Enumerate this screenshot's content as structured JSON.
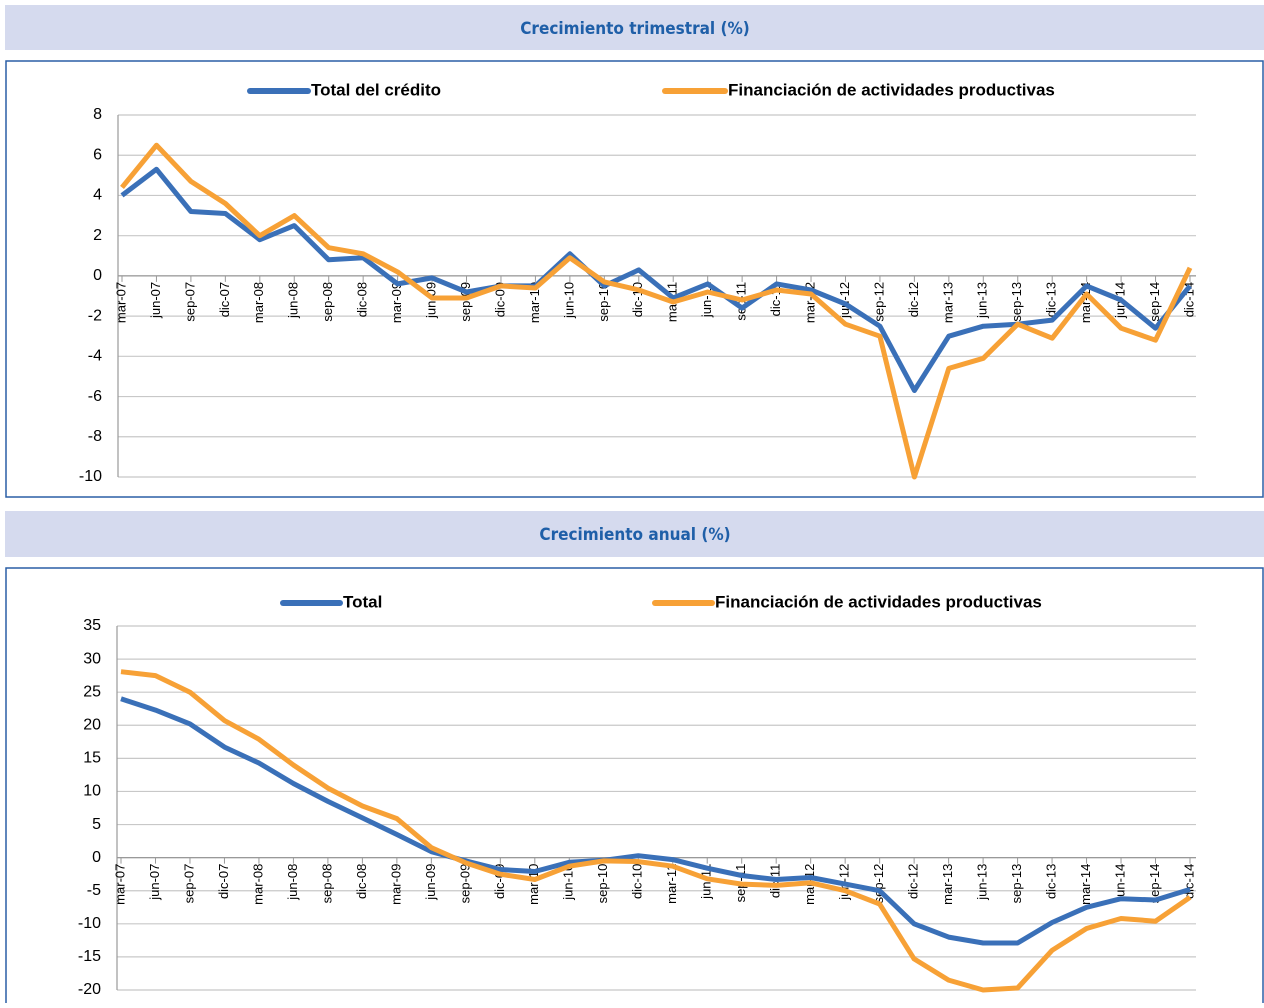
{
  "chart_data": [
    {
      "type": "line",
      "title": "Crecimiento trimestral (%)",
      "categories": [
        "mar-07",
        "jun-07",
        "sep-07",
        "dic-07",
        "mar-08",
        "jun-08",
        "sep-08",
        "dic-08",
        "mar-09",
        "jun-09",
        "sep-09",
        "dic-09",
        "mar-10",
        "jun-10",
        "sep-10",
        "dic-10",
        "mar-11",
        "jun-11",
        "sep-11",
        "dic-11",
        "mar-12",
        "jun-12",
        "sep-12",
        "dic-12",
        "mar-13",
        "jun-13",
        "sep-13",
        "dic-13",
        "mar-14",
        "jun-14",
        "sep-14",
        "dic-14"
      ],
      "series": [
        {
          "name": "Total del crédito",
          "color": "#3a70b8",
          "values": [
            4.0,
            5.3,
            3.2,
            3.1,
            1.8,
            2.5,
            0.8,
            0.9,
            -0.4,
            -0.1,
            -0.8,
            -0.5,
            -0.5,
            1.1,
            -0.5,
            0.3,
            -1.1,
            -0.4,
            -1.6,
            -0.4,
            -0.7,
            -1.4,
            -2.5,
            -5.7,
            -3.0,
            -2.5,
            -2.4,
            -2.2,
            -0.5,
            -1.2,
            -2.6,
            -0.5
          ]
        },
        {
          "name": "Financiación de actividades productivas",
          "color": "#f7a136",
          "values": [
            4.4,
            6.5,
            4.7,
            3.6,
            2.0,
            3.0,
            1.4,
            1.1,
            0.2,
            -1.1,
            -1.1,
            -0.5,
            -0.6,
            0.9,
            -0.3,
            -0.7,
            -1.3,
            -0.8,
            -1.2,
            -0.7,
            -0.9,
            -2.4,
            -3.0,
            -10.0,
            -4.6,
            -4.1,
            -2.4,
            -3.1,
            -0.9,
            -2.6,
            -3.2,
            0.4
          ]
        }
      ],
      "ylim": [
        -10,
        8
      ],
      "yticks": [
        -10,
        -8,
        -6,
        -4,
        -2,
        0,
        2,
        4,
        6,
        8
      ],
      "grid": true,
      "legend": "top"
    },
    {
      "type": "line",
      "title": "Crecimiento anual (%)",
      "categories": [
        "mar-07",
        "jun-07",
        "sep-07",
        "dic-07",
        "mar-08",
        "jun-08",
        "sep-08",
        "dic-08",
        "mar-09",
        "jun-09",
        "sep-09",
        "dic-09",
        "mar-10",
        "jun-10",
        "sep-10",
        "dic-10",
        "mar-11",
        "jun-11",
        "sep-11",
        "dic-11",
        "mar-12",
        "jun-12",
        "sep-12",
        "dic-12",
        "mar-13",
        "jun-13",
        "sep-13",
        "dic-13",
        "mar-14",
        "jun-14",
        "sep-14",
        "dic-14"
      ],
      "series": [
        {
          "name": "Total",
          "color": "#3a70b8",
          "values": [
            24,
            22.3,
            20.2,
            16.7,
            14.3,
            11.2,
            8.5,
            6.0,
            3.5,
            0.9,
            -0.5,
            -1.8,
            -2.1,
            -0.7,
            -0.4,
            0.3,
            -0.3,
            -1.6,
            -2.7,
            -3.3,
            -3.0,
            -4.0,
            -5.0,
            -10.0,
            -12.0,
            -12.9,
            -12.9,
            -9.8,
            -7.5,
            -6.2,
            -6.4,
            -4.8
          ]
        },
        {
          "name": "Financiación de actividades productivas",
          "color": "#f7a136",
          "values": [
            28.1,
            27.5,
            25.0,
            20.7,
            17.9,
            14.0,
            10.5,
            7.8,
            5.9,
            1.5,
            -0.8,
            -2.5,
            -3.3,
            -1.3,
            -0.5,
            -0.6,
            -1.3,
            -3.2,
            -4.0,
            -4.2,
            -3.8,
            -5.0,
            -7.0,
            -15.3,
            -18.5,
            -20.0,
            -19.7,
            -14.0,
            -10.7,
            -9.2,
            -9.6,
            -6.0
          ]
        }
      ],
      "ylim": [
        -20,
        35
      ],
      "yticks": [
        -20,
        -15,
        -10,
        -5,
        0,
        5,
        10,
        15,
        20,
        25,
        30,
        35
      ],
      "grid": true,
      "legend": "top"
    }
  ]
}
